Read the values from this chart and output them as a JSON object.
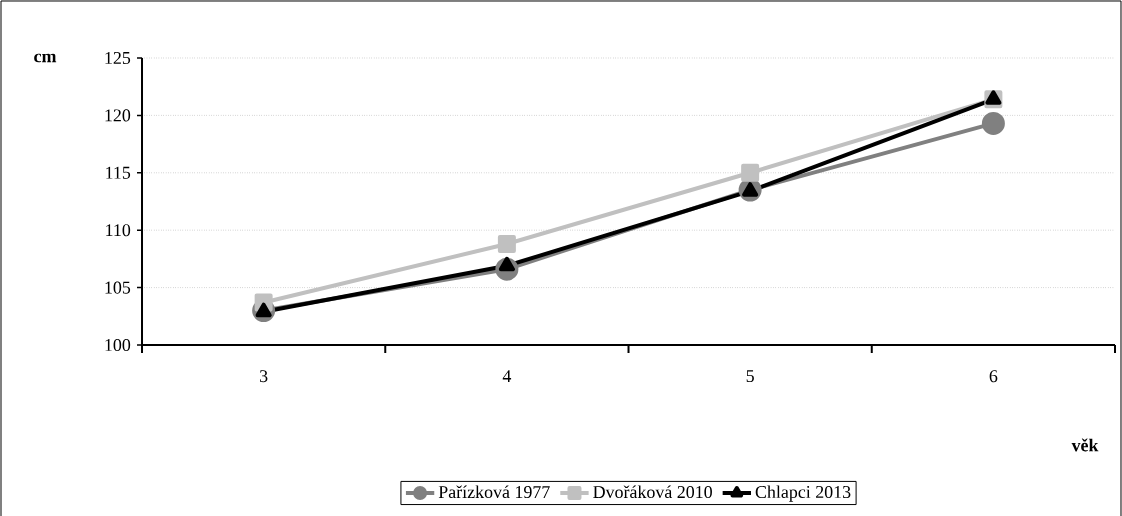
{
  "chart_data": {
    "type": "line",
    "xlabel": "věk",
    "ylabel": "cm",
    "categories": [
      "3",
      "4",
      "5",
      "6"
    ],
    "series": [
      {
        "name": "Pařízková 1977",
        "color": "#808080",
        "marker": "circle",
        "values": [
          103.0,
          106.6,
          113.5,
          119.3
        ]
      },
      {
        "name": "Dvořáková 2010",
        "color": "#c0c0c0",
        "marker": "square",
        "values": [
          103.7,
          108.8,
          115.0,
          121.4
        ]
      },
      {
        "name": "Chlapci 2013",
        "color": "#000000",
        "marker": "triangle",
        "values": [
          102.9,
          106.9,
          113.4,
          121.4
        ]
      }
    ],
    "ylim": [
      100,
      125
    ],
    "yticks": [
      100,
      105,
      110,
      115,
      120,
      125
    ],
    "grid": "y",
    "legend": "bottom",
    "line_style": "solid"
  }
}
